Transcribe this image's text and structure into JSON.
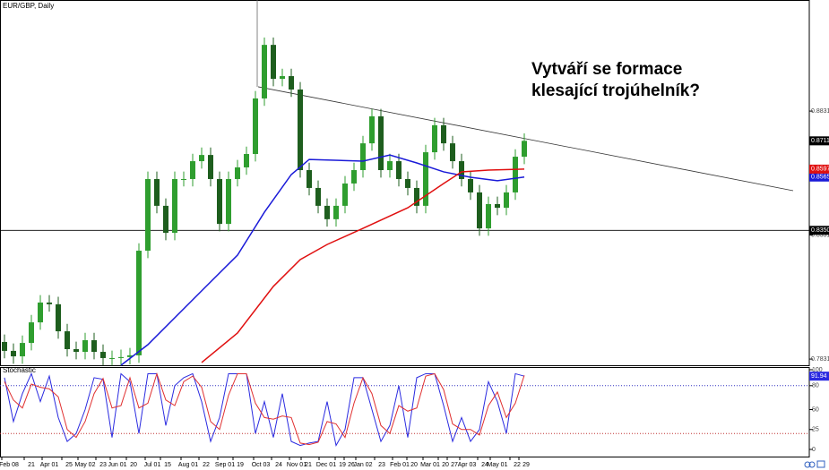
{
  "chart_data": [
    {
      "type": "candlestick",
      "title": "EUR/GBP, Daily",
      "annotation": [
        "Vytváří se formace",
        "klesající trojúhelník?"
      ],
      "up_color": "#2f9e2f",
      "down_color": "#1e5e1e",
      "open": [
        0.79,
        0.7864,
        0.7842,
        0.7896,
        0.7979,
        0.8059,
        0.8052,
        0.7943,
        0.7871,
        0.786,
        0.7907,
        0.786,
        0.7835,
        0.7835,
        0.7839,
        0.7846,
        0.8268,
        0.8557,
        0.8449,
        0.834,
        0.8557,
        0.8557,
        0.8629,
        0.8654,
        0.8557,
        0.8376,
        0.8557,
        0.8604,
        0.8658,
        0.8882,
        0.9098,
        0.8961,
        0.8972,
        0.8918,
        0.8593,
        0.8521,
        0.8449,
        0.8395,
        0.8449,
        0.8539,
        0.8593,
        0.8701,
        0.881,
        0.8593,
        0.8629,
        0.8557,
        0.8521,
        0.8449,
        0.8665,
        0.8774,
        0.8701,
        0.8629,
        0.8557,
        0.8503,
        0.8358,
        0.8456,
        0.8441,
        0.8503,
        0.8647
      ],
      "high": [
        0.793,
        0.7894,
        0.7926,
        0.8009,
        0.8089,
        0.8089,
        0.8082,
        0.7973,
        0.7901,
        0.7937,
        0.7937,
        0.789,
        0.7865,
        0.7869,
        0.7876,
        0.8298,
        0.8587,
        0.8587,
        0.8479,
        0.8587,
        0.8587,
        0.8659,
        0.8684,
        0.8684,
        0.8587,
        0.8587,
        0.8634,
        0.8688,
        0.8912,
        0.9128,
        0.9128,
        0.9002,
        0.9002,
        0.8948,
        0.8623,
        0.8551,
        0.8479,
        0.8479,
        0.8569,
        0.8623,
        0.8731,
        0.884,
        0.884,
        0.8659,
        0.8659,
        0.8587,
        0.8551,
        0.8695,
        0.8804,
        0.8804,
        0.8731,
        0.8659,
        0.8587,
        0.8533,
        0.8486,
        0.8486,
        0.8533,
        0.8677,
        0.8741
      ],
      "low": [
        0.7834,
        0.7812,
        0.7812,
        0.7866,
        0.7949,
        0.8022,
        0.7913,
        0.7841,
        0.783,
        0.783,
        0.783,
        0.7805,
        0.7805,
        0.7805,
        0.7809,
        0.7816,
        0.8238,
        0.8419,
        0.831,
        0.831,
        0.8527,
        0.8527,
        0.8599,
        0.8527,
        0.8346,
        0.8346,
        0.8527,
        0.8574,
        0.8628,
        0.8852,
        0.8931,
        0.8931,
        0.8888,
        0.8563,
        0.8491,
        0.8419,
        0.8365,
        0.8365,
        0.8419,
        0.8509,
        0.8563,
        0.8671,
        0.8563,
        0.8563,
        0.8527,
        0.8491,
        0.8419,
        0.8419,
        0.8635,
        0.8671,
        0.8599,
        0.8527,
        0.8473,
        0.8328,
        0.8328,
        0.8411,
        0.8411,
        0.8473,
        0.8617
      ],
      "close": [
        0.7864,
        0.7842,
        0.7896,
        0.7979,
        0.8059,
        0.8052,
        0.7943,
        0.7871,
        0.786,
        0.7907,
        0.786,
        0.7835,
        0.7835,
        0.7839,
        0.7846,
        0.8268,
        0.8557,
        0.8449,
        0.834,
        0.8557,
        0.8557,
        0.8629,
        0.8654,
        0.8557,
        0.8376,
        0.8557,
        0.8604,
        0.8658,
        0.8882,
        0.9098,
        0.8961,
        0.8972,
        0.8918,
        0.8593,
        0.8521,
        0.8449,
        0.8395,
        0.8449,
        0.8539,
        0.8593,
        0.8701,
        0.881,
        0.8593,
        0.8629,
        0.8557,
        0.8521,
        0.8449,
        0.8665,
        0.8774,
        0.8701,
        0.8629,
        0.8557,
        0.8503,
        0.8358,
        0.8456,
        0.8441,
        0.8503,
        0.8647,
        0.8711
      ],
      "series": [
        {
          "color": "#1a1ad8",
          "x": [
            13,
            16,
            22,
            26,
            29,
            32,
            34,
            40,
            43,
            46,
            49,
            52,
            55,
            58
          ],
          "values": [
            0.7806,
            0.7889,
            0.8106,
            0.825,
            0.8423,
            0.8575,
            0.8636,
            0.8629,
            0.8654,
            0.8622,
            0.8586,
            0.8564,
            0.855,
            0.8565
          ]
        },
        {
          "color": "#e01010",
          "x": [
            22,
            26,
            30,
            33,
            36,
            40,
            45,
            49,
            51,
            54,
            58
          ],
          "values": [
            0.7817,
            0.7936,
            0.8124,
            0.8232,
            0.8293,
            0.8358,
            0.8441,
            0.8539,
            0.8586,
            0.8593,
            0.8597
          ]
        }
      ],
      "hline": {
        "value": 0.835,
        "label": "0.8350"
      },
      "trendline": {
        "x": [
          28.3,
          88
        ],
        "y": [
          0.8929,
          0.851
        ]
      },
      "ylim": [
        0.7806,
        0.9279
      ],
      "yticks": [
        0.8831,
        0.8331,
        0.7831
      ],
      "x_labels": [
        "Feb 08",
        "21",
        "Apr 01",
        "25",
        "May 02",
        "23",
        "Jun 01",
        "20",
        "Jul 01",
        "15",
        "Aug 01",
        "22",
        "Sep 01",
        "19",
        "Oct 03",
        "24",
        "Nov 01",
        "21",
        "Dec 01",
        "19",
        "26",
        "Jan 02",
        "23",
        "Feb 01",
        "20",
        "Mar 01",
        "20",
        "27",
        "Apr 03",
        "24",
        "May 01",
        "22",
        "29"
      ]
    },
    {
      "type": "line",
      "title": "Stochastic",
      "series": [
        {
          "color": "#2a2ae0",
          "values": [
            90,
            35,
            70,
            95,
            60,
            92,
            40,
            10,
            20,
            50,
            90,
            88,
            15,
            95,
            85,
            20,
            95,
            95,
            30,
            80,
            90,
            95,
            60,
            10,
            40,
            95,
            95,
            95,
            20,
            60,
            15,
            70,
            10,
            5,
            8,
            10,
            60,
            5,
            25,
            90,
            90,
            50,
            10,
            30,
            80,
            15,
            90,
            95,
            95,
            55,
            10,
            40,
            10,
            25,
            85,
            60,
            20,
            95,
            91.94
          ]
        },
        {
          "color": "#e03030",
          "values": [
            85,
            62,
            52,
            82,
            78,
            76,
            66,
            25,
            15,
            35,
            70,
            89,
            52,
            55,
            90,
            52,
            58,
            95,
            62,
            55,
            85,
            92,
            78,
            35,
            25,
            68,
            95,
            95,
            58,
            40,
            38,
            42,
            40,
            8,
            6,
            9,
            35,
            32,
            15,
            58,
            90,
            70,
            30,
            20,
            55,
            48,
            52,
            92,
            95,
            75,
            32,
            25,
            25,
            18,
            55,
            72,
            40,
            58,
            93
          ]
        }
      ],
      "levels": [
        {
          "value": 80,
          "color": "#3030c0"
        },
        {
          "value": 20,
          "color": "#c03030"
        }
      ],
      "ylim": [
        0,
        100
      ],
      "yticks": [
        100,
        80,
        50,
        25,
        0
      ]
    }
  ]
}
